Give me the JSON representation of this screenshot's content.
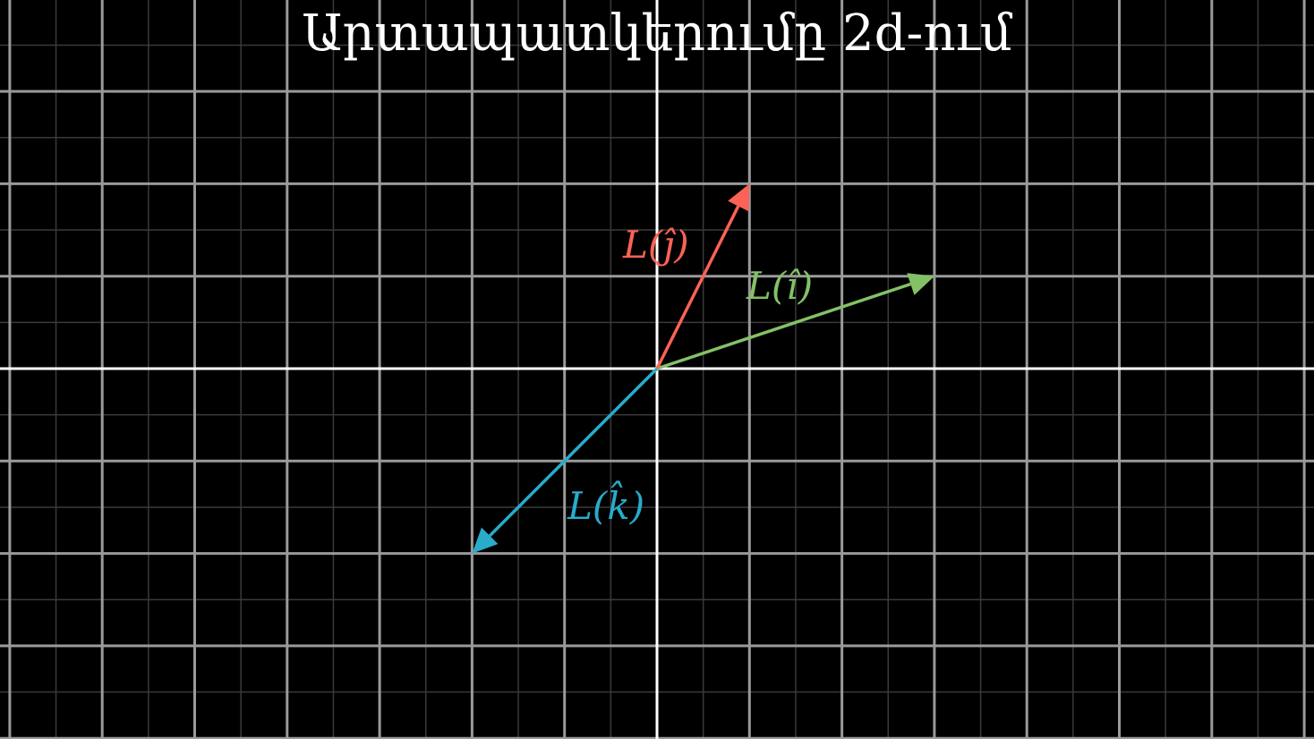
{
  "title": "Արտապատկերումը 2d-ում",
  "colors": {
    "background": "#000000",
    "major_grid": "#9a9a9a",
    "minor_grid": "#3a3a3a",
    "axis": "#ffffff"
  },
  "grid": {
    "origin": [
      0,
      0
    ],
    "x_range": [
      -7,
      7
    ],
    "y_range": [
      -4,
      4
    ],
    "unit": 1,
    "minor_subdivisions": 2
  },
  "vectors": [
    {
      "name": "L(î)",
      "label": "L(î)",
      "to": [
        3,
        1
      ],
      "color": "#83c167"
    },
    {
      "name": "L(ĵ)",
      "label": "L(ĵ)",
      "to": [
        1,
        2
      ],
      "color": "#fc6255"
    },
    {
      "name": "L(k̂)",
      "label": "L(k̂)",
      "to": [
        -2,
        -2
      ],
      "color": "#29abca"
    }
  ]
}
